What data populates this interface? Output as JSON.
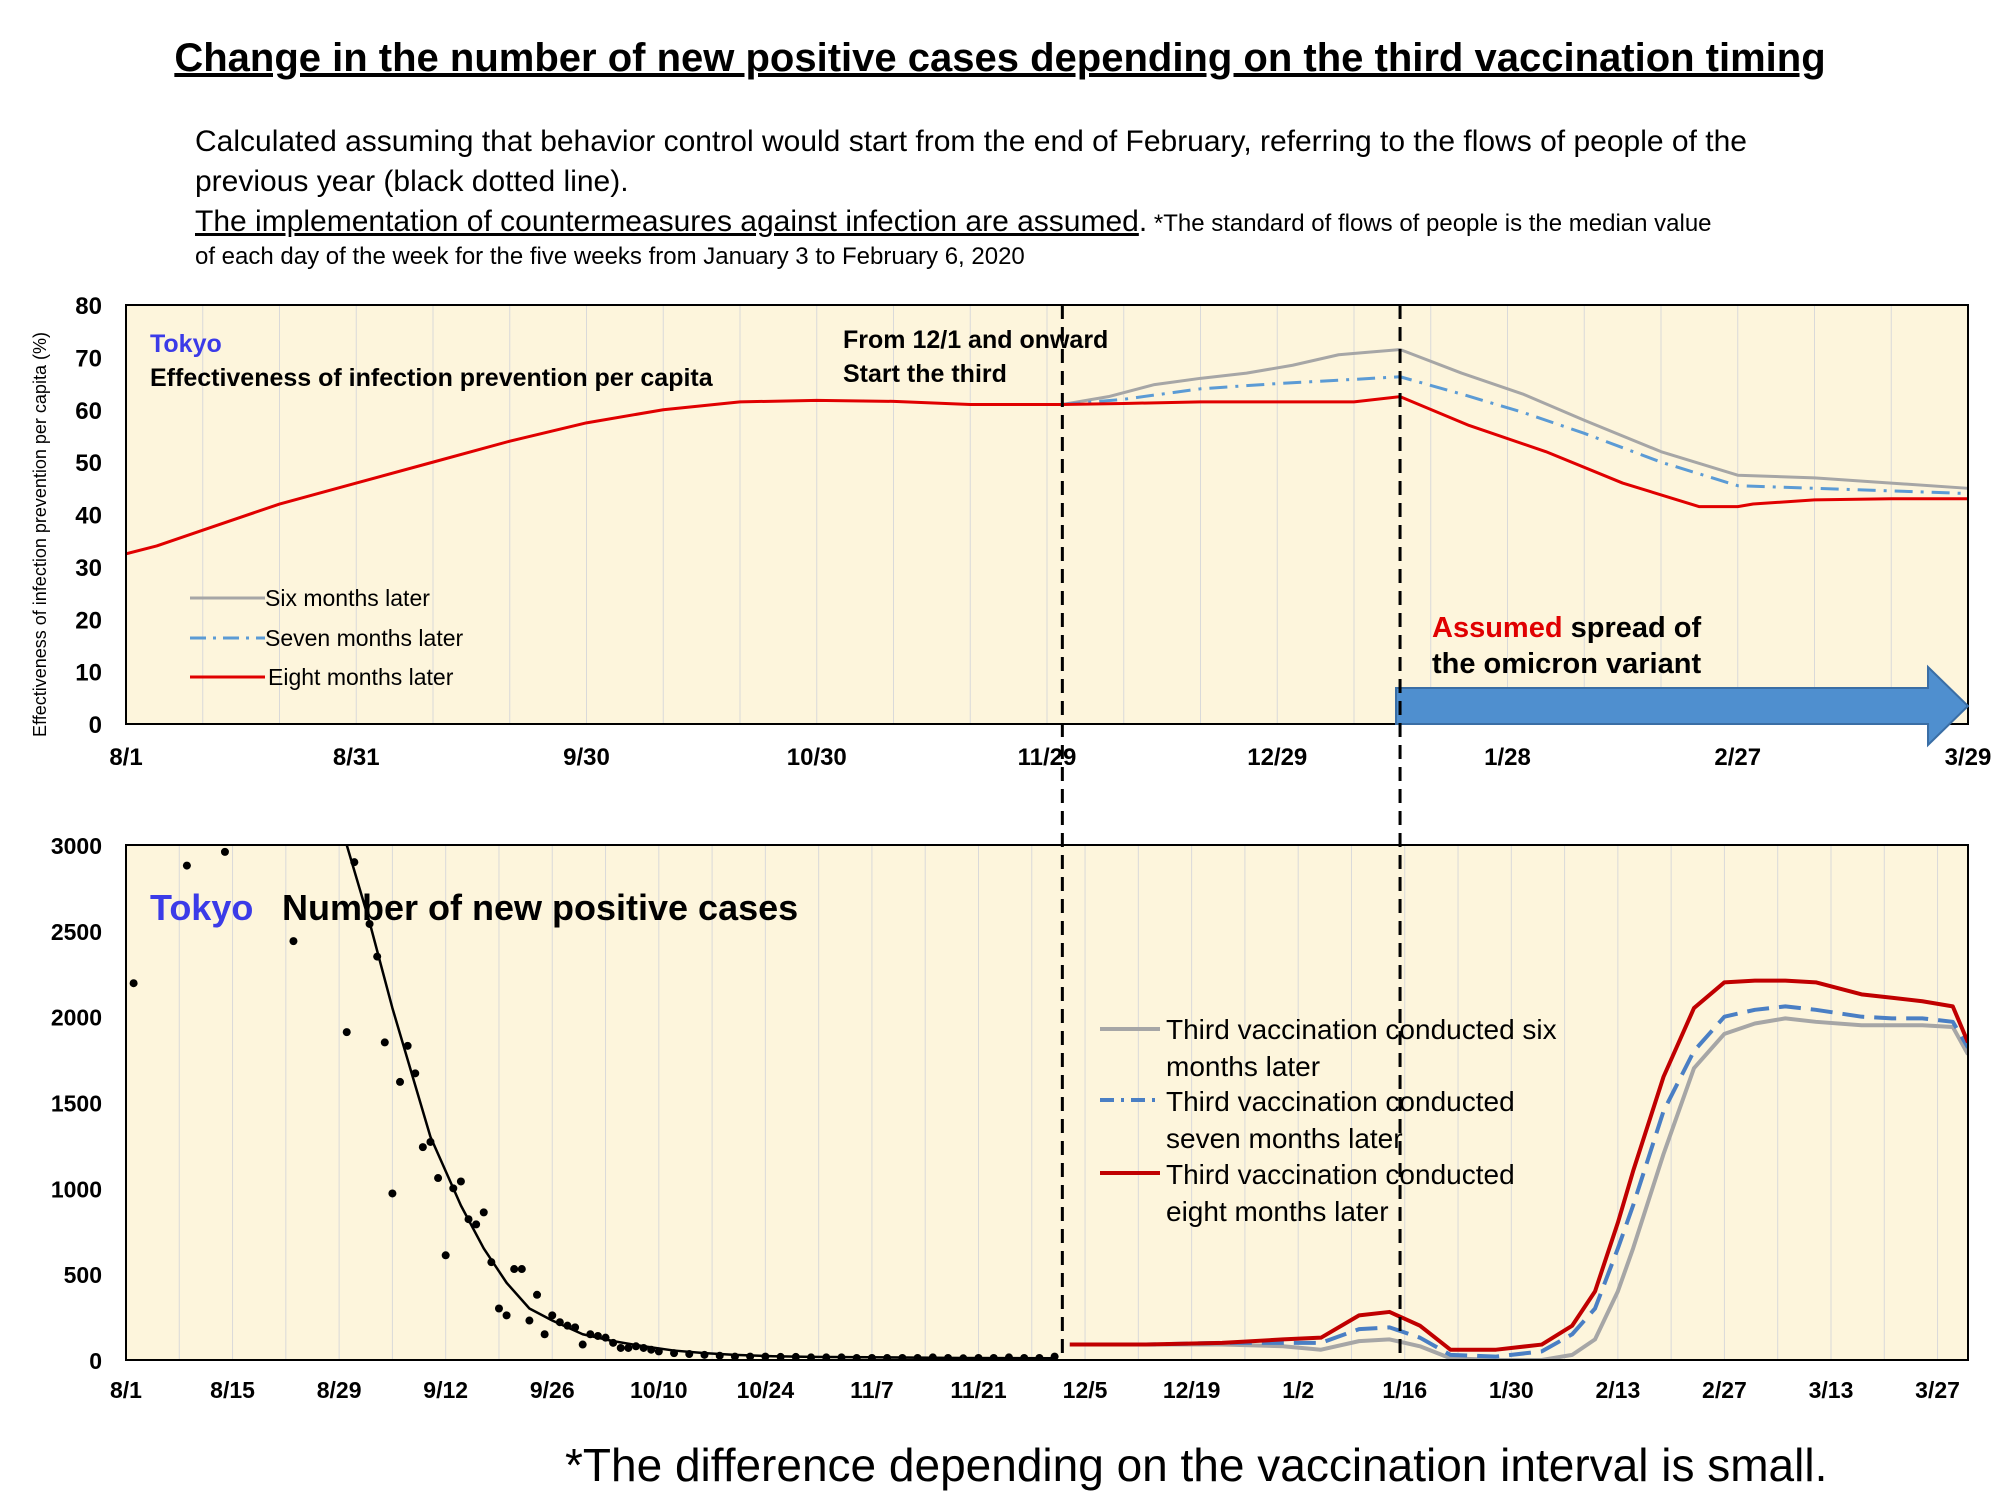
{
  "title": "Change in the number of new positive cases depending on the third vaccination timing",
  "description": {
    "line1": "Calculated assuming that behavior control would start from the end of February, referring to the flows of people of the",
    "line2": "previous year (black dotted line).",
    "line3_underlined": "The implementation of countermeasures against infection are assumed",
    "line3_period": ".",
    "line3_note": " *The standard of flows of people is the median value",
    "line4": "of each day of the week for the five weeks from January 3 to February 6, 2020"
  },
  "footnote": "*The difference depending on the vaccination interval is small.",
  "colors": {
    "background": "#fdf5dc",
    "gray": "#a6a6a6",
    "blue": "#4a7fc4",
    "red": "#e00000",
    "arrow": "#4f8fcf",
    "region_label": "#3b3be8"
  },
  "chart_data": [
    {
      "type": "line",
      "region": "Tokyo",
      "title": "Effectiveness of infection prevention per capita",
      "ylabel": "Effectiveness of infection prevention per capita (%)",
      "ylim": [
        0,
        80
      ],
      "yticks": [
        "0",
        "10",
        "20",
        "30",
        "40",
        "50",
        "60",
        "70",
        "80"
      ],
      "xticks": [
        "8/1",
        "8/31",
        "9/30",
        "10/30",
        "11/29",
        "12/29",
        "1/28",
        "2/27",
        "3/29"
      ],
      "xlim_days": [
        0,
        240
      ],
      "vertical_lines_days": [
        122,
        166
      ],
      "annotation_start": [
        "From 12/1 and onward",
        "Start the third"
      ],
      "annotation_omicron": {
        "red": "Assumed",
        "rest": " spread of",
        "line2": "the omicron variant"
      },
      "legend": [
        "Six months later",
        "Seven months later",
        "Eight months later"
      ],
      "series": [
        {
          "name": "Six months later",
          "color": "#a6a6a6",
          "dash": "solid",
          "x": [
            122,
            128,
            134,
            140,
            146,
            152,
            158,
            162,
            166,
            174,
            182,
            190,
            200,
            210,
            220,
            230,
            240
          ],
          "y": [
            61,
            62.5,
            64.8,
            66,
            67,
            68.5,
            70.5,
            71,
            71.5,
            67,
            63,
            58,
            52,
            47.5,
            47,
            46,
            45
          ]
        },
        {
          "name": "Seven months later",
          "color": "#5b9bd5",
          "dash": "dashdot",
          "x": [
            122,
            130,
            140,
            150,
            160,
            166,
            174,
            182,
            190,
            200,
            210,
            220,
            230,
            240
          ],
          "y": [
            61,
            62,
            64,
            65,
            65.8,
            66.3,
            63,
            59.5,
            55.5,
            50,
            45.5,
            45,
            44.5,
            44
          ]
        },
        {
          "name": "Eight months later",
          "color": "#e00000",
          "dash": "solid",
          "x": [
            0,
            4,
            10,
            20,
            30,
            40,
            50,
            60,
            70,
            80,
            90,
            100,
            110,
            122,
            130,
            140,
            150,
            160,
            166,
            175,
            185,
            195,
            205,
            210,
            212,
            220,
            230,
            240
          ],
          "y": [
            32.5,
            34,
            37,
            42,
            46,
            50,
            54,
            57.5,
            60,
            61.5,
            61.8,
            61.6,
            61,
            61,
            61.2,
            61.5,
            61.5,
            61.5,
            62.5,
            57,
            52,
            46,
            41.5,
            41.5,
            42,
            42.8,
            43,
            43
          ]
        }
      ]
    },
    {
      "type": "line",
      "region": "Tokyo",
      "title": "Number of new positive cases",
      "ylim": [
        0,
        3000
      ],
      "yticks": [
        "0",
        "500",
        "1000",
        "1500",
        "2000",
        "2500",
        "3000"
      ],
      "xticks": [
        "8/1",
        "8/15",
        "8/29",
        "9/12",
        "9/26",
        "10/10",
        "10/24",
        "11/7",
        "11/21",
        "12/5",
        "12/19",
        "1/2",
        "1/16",
        "1/30",
        "2/13",
        "2/27",
        "3/13",
        "3/27"
      ],
      "xlim_days": [
        0,
        242
      ],
      "legend": [
        "Third vaccination conducted six months later",
        "Third vaccination conducted seven months later",
        "Third vaccination conducted eight months later"
      ],
      "series": [
        {
          "name": "Observed (points)",
          "type": "scatter",
          "color": "#000000",
          "x": [
            1,
            8,
            13,
            22,
            29,
            30,
            32,
            33,
            34,
            35,
            36,
            37,
            38,
            39,
            40,
            41,
            42,
            43,
            44,
            45,
            46,
            47,
            48,
            49,
            50,
            51,
            52,
            53,
            54,
            55,
            56,
            57,
            58,
            59,
            60,
            61,
            62,
            63,
            64,
            65,
            66,
            67,
            68,
            69,
            70,
            72,
            74,
            76,
            78,
            80,
            82,
            84,
            86,
            88,
            90,
            92,
            94,
            96,
            98,
            100,
            102,
            104,
            106,
            108,
            110,
            112,
            114,
            116,
            118,
            120,
            122
          ],
          "y": [
            2195,
            2880,
            2960,
            2440,
            1910,
            2900,
            2540,
            2350,
            1850,
            970,
            1620,
            1830,
            1670,
            1240,
            1270,
            1060,
            610,
            1000,
            1040,
            820,
            790,
            860,
            570,
            300,
            260,
            530,
            530,
            230,
            380,
            150,
            260,
            220,
            200,
            190,
            90,
            150,
            140,
            130,
            100,
            70,
            70,
            80,
            70,
            60,
            50,
            40,
            35,
            30,
            25,
            20,
            20,
            20,
            18,
            18,
            15,
            15,
            15,
            12,
            12,
            12,
            12,
            12,
            15,
            12,
            10,
            12,
            12,
            15,
            12,
            12,
            20
          ]
        },
        {
          "name": "Observed trend",
          "color": "#000000",
          "dash": "solid",
          "x": [
            29,
            32,
            35,
            38,
            40,
            42,
            44,
            47,
            50,
            53,
            56,
            60,
            64,
            68,
            72,
            76,
            80,
            85,
            90,
            100,
            110,
            122
          ],
          "y": [
            3000,
            2550,
            2050,
            1600,
            1300,
            1100,
            900,
            650,
            450,
            300,
            230,
            150,
            110,
            80,
            55,
            40,
            30,
            22,
            18,
            15,
            12,
            10
          ]
        },
        {
          "name": "Third vaccination conducted six months later",
          "color": "#a6a6a6",
          "dash": "solid",
          "x": [
            124,
            134,
            144,
            152,
            157,
            162,
            166,
            170,
            174,
            180,
            186,
            190,
            193,
            196,
            198,
            202,
            206,
            210,
            214,
            218,
            222,
            228,
            232,
            236,
            240,
            242
          ],
          "y": [
            90,
            90,
            90,
            80,
            60,
            110,
            120,
            80,
            10,
            0,
            0,
            30,
            120,
            400,
            650,
            1200,
            1700,
            1900,
            1960,
            1990,
            1970,
            1950,
            1950,
            1950,
            1940,
            1780
          ]
        },
        {
          "name": "Third vaccination conducted seven months later",
          "color": "#4a7fc4",
          "dash": "dash",
          "x": [
            124,
            134,
            144,
            152,
            157,
            162,
            166,
            170,
            174,
            180,
            186,
            190,
            193,
            196,
            198,
            202,
            206,
            210,
            214,
            218,
            222,
            228,
            232,
            236,
            240,
            242
          ],
          "y": [
            90,
            90,
            100,
            100,
            100,
            180,
            190,
            130,
            30,
            20,
            50,
            150,
            300,
            650,
            900,
            1450,
            1800,
            2000,
            2040,
            2060,
            2040,
            2000,
            1990,
            1990,
            1970,
            1820
          ]
        },
        {
          "name": "Third vaccination conducted eight months later",
          "color": "#c00000",
          "dash": "solid",
          "x": [
            124,
            134,
            144,
            152,
            157,
            162,
            166,
            170,
            174,
            180,
            186,
            190,
            193,
            196,
            198,
            202,
            206,
            210,
            214,
            218,
            222,
            228,
            232,
            236,
            240,
            242
          ],
          "y": [
            90,
            90,
            100,
            120,
            130,
            260,
            280,
            200,
            60,
            60,
            90,
            200,
            400,
            800,
            1100,
            1650,
            2050,
            2200,
            2210,
            2210,
            2200,
            2130,
            2110,
            2090,
            2060,
            1850
          ]
        }
      ]
    }
  ]
}
